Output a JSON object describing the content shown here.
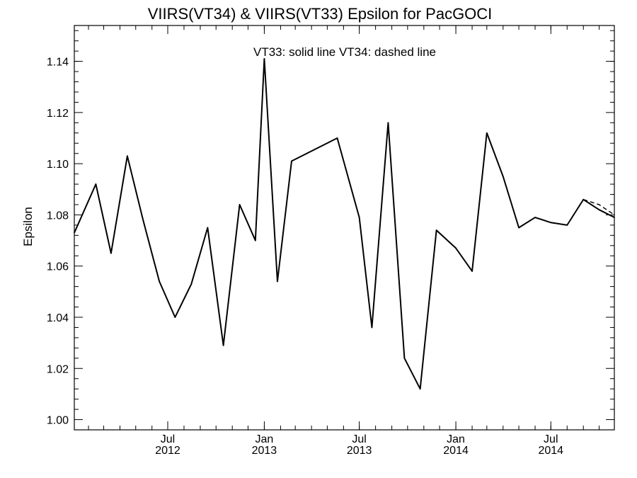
{
  "chart_data": {
    "type": "line",
    "title": "VIIRS(VT34) & VIIRS(VT33)  Epsilon for PacGOCI",
    "annotation": "VT33: solid line   VT34: dashed line",
    "xlabel": "",
    "ylabel": "Epsilon",
    "xlim": [
      "2012-01-05",
      "2014-10-30"
    ],
    "ylim": [
      0.996,
      1.154
    ],
    "y_ticks": [
      {
        "value": 1.0,
        "label": "1.00"
      },
      {
        "value": 1.02,
        "label": "1.02"
      },
      {
        "value": 1.04,
        "label": "1.04"
      },
      {
        "value": 1.06,
        "label": "1.06"
      },
      {
        "value": 1.08,
        "label": "1.08"
      },
      {
        "value": 1.1,
        "label": "1.10"
      },
      {
        "value": 1.12,
        "label": "1.12"
      },
      {
        "value": 1.14,
        "label": "1.14"
      }
    ],
    "x_ticks": [
      {
        "date": "2012-07-01",
        "month": "Jul",
        "year": "2012"
      },
      {
        "date": "2013-01-01",
        "month": "Jan",
        "year": "2013"
      },
      {
        "date": "2013-07-01",
        "month": "Jul",
        "year": "2013"
      },
      {
        "date": "2014-01-01",
        "month": "Jan",
        "year": "2014"
      },
      {
        "date": "2014-07-01",
        "month": "Jul",
        "year": "2014"
      }
    ],
    "grid": false,
    "series": [
      {
        "style": "solid",
        "x": [
          "2012-01-05",
          "2012-02-15",
          "2012-03-15",
          "2012-04-15",
          "2012-05-15",
          "2012-06-15",
          "2012-07-15",
          "2012-08-15",
          "2012-09-15",
          "2012-10-15",
          "2012-11-15",
          "2012-12-15",
          "2013-01-01",
          "2013-01-26",
          "2013-02-22",
          "2013-05-20",
          "2013-07-01",
          "2013-07-25",
          "2013-08-25",
          "2013-09-25",
          "2013-10-25",
          "2013-11-25",
          "2014-01-01",
          "2014-02-01",
          "2014-03-01",
          "2014-04-01",
          "2014-05-01",
          "2014-06-01",
          "2014-07-01",
          "2014-08-01",
          "2014-09-01",
          "2014-10-01",
          "2014-10-30"
        ],
        "y": [
          1.073,
          1.092,
          1.065,
          1.103,
          1.078,
          1.054,
          1.04,
          1.053,
          1.075,
          1.029,
          1.084,
          1.07,
          1.141,
          1.054,
          1.101,
          1.11,
          1.079,
          1.036,
          1.116,
          1.024,
          1.012,
          1.074,
          1.067,
          1.058,
          1.112,
          1.095,
          1.075,
          1.079,
          1.077,
          1.076,
          1.086,
          1.082,
          1.079
        ]
      },
      {
        "style": "dashed",
        "x": [
          "2014-09-01",
          "2014-10-01",
          "2014-10-30"
        ],
        "y": [
          1.086,
          1.084,
          1.08
        ]
      }
    ]
  }
}
